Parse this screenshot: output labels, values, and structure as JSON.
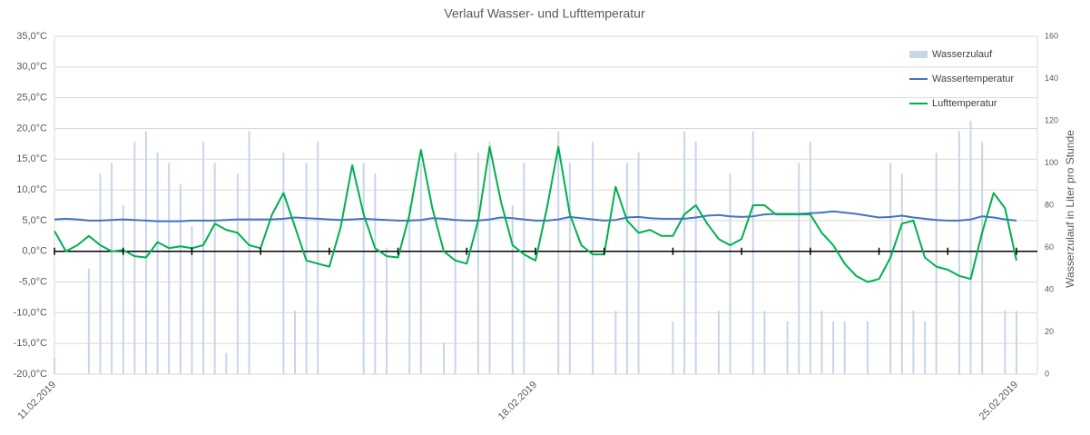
{
  "chart_data": {
    "type": "combo",
    "title": "Verlauf Wasser- und Lufttemperatur",
    "y2_label": "Wasserzulauf in Liter pro Stunde",
    "categories": [
      "11.02.2019",
      null,
      null,
      null,
      null,
      null,
      null,
      null,
      null,
      null,
      null,
      null,
      null,
      null,
      null,
      null,
      null,
      null,
      null,
      null,
      null,
      null,
      null,
      null,
      null,
      null,
      null,
      null,
      null,
      null,
      null,
      null,
      null,
      null,
      null,
      null,
      null,
      null,
      null,
      null,
      null,
      null,
      "18.02.2019",
      null,
      null,
      null,
      null,
      null,
      null,
      null,
      null,
      null,
      null,
      null,
      null,
      null,
      null,
      null,
      null,
      null,
      null,
      null,
      null,
      null,
      null,
      null,
      null,
      null,
      null,
      null,
      null,
      null,
      null,
      null,
      null,
      null,
      null,
      null,
      null,
      null,
      null,
      null,
      null,
      null,
      "25.02.2019"
    ],
    "ylim": [
      -20,
      35
    ],
    "yticks": [
      {
        "value": -20,
        "label": "-20,0°C"
      },
      {
        "value": -15,
        "label": "-15,0°C"
      },
      {
        "value": -10,
        "label": "-10,0°C"
      },
      {
        "value": -5,
        "label": "-5,0°C"
      },
      {
        "value": 0,
        "label": "0,0°C"
      },
      {
        "value": 5,
        "label": "5,0°C"
      },
      {
        "value": 10,
        "label": "10,0°C"
      },
      {
        "value": 15,
        "label": "15,0°C"
      },
      {
        "value": 20,
        "label": "20,0°C"
      },
      {
        "value": 25,
        "label": "25,0°C"
      },
      {
        "value": 30,
        "label": "30,0°C"
      },
      {
        "value": 35,
        "label": "35,0°C"
      }
    ],
    "y2lim": [
      0,
      160
    ],
    "y2ticks": [
      0,
      20,
      40,
      60,
      80,
      100,
      120,
      140,
      160
    ],
    "grid": true,
    "legend": "top-right",
    "series": [
      {
        "name": "Wasserzulauf",
        "type": "bar",
        "axis": "y2",
        "color": "#c9d5e8",
        "values": [
          8,
          0,
          0,
          50,
          95,
          100,
          80,
          110,
          115,
          105,
          100,
          90,
          70,
          110,
          100,
          10,
          95,
          115,
          0,
          0,
          105,
          30,
          100,
          110,
          0,
          0,
          0,
          100,
          95,
          60,
          0,
          80,
          100,
          0,
          15,
          105,
          0,
          105,
          110,
          0,
          80,
          100,
          0,
          0,
          115,
          100,
          0,
          110,
          0,
          30,
          100,
          105,
          0,
          0,
          25,
          115,
          110,
          0,
          30,
          95,
          0,
          115,
          30,
          0,
          25,
          100,
          110,
          30,
          25,
          25,
          0,
          25,
          0,
          100,
          95,
          30,
          25,
          105,
          0,
          115,
          120,
          110,
          0,
          30,
          30
        ]
      },
      {
        "name": "Wassertemperatur",
        "type": "line",
        "color": "#4472c4",
        "values": [
          5.2,
          5.3,
          5.2,
          5.0,
          5.0,
          5.1,
          5.2,
          5.1,
          5.0,
          4.9,
          4.9,
          4.9,
          5.0,
          5.0,
          5.0,
          5.1,
          5.2,
          5.2,
          5.2,
          5.2,
          5.3,
          5.5,
          5.4,
          5.3,
          5.2,
          5.1,
          5.2,
          5.3,
          5.2,
          5.1,
          5.0,
          5.0,
          5.1,
          5.4,
          5.3,
          5.1,
          5.0,
          5.0,
          5.2,
          5.5,
          5.4,
          5.2,
          5.0,
          5.0,
          5.2,
          5.6,
          5.4,
          5.2,
          5.0,
          5.1,
          5.5,
          5.6,
          5.4,
          5.3,
          5.3,
          5.3,
          5.5,
          5.8,
          5.9,
          5.7,
          5.6,
          5.7,
          6.0,
          6.1,
          6.1,
          6.1,
          6.2,
          6.3,
          6.5,
          6.3,
          6.1,
          5.8,
          5.5,
          5.6,
          5.8,
          5.5,
          5.3,
          5.1,
          5.0,
          5.0,
          5.2,
          5.7,
          5.5,
          5.2,
          5.0
        ]
      },
      {
        "name": "Lufttemperatur",
        "type": "line",
        "color": "#00b050",
        "values": [
          3.3,
          0,
          1,
          2.5,
          1,
          0,
          0.2,
          -0.8,
          -1,
          1.5,
          0.5,
          0.8,
          0.5,
          1,
          4.5,
          3.5,
          3,
          1,
          0.5,
          6,
          9.5,
          4,
          -1.5,
          -2,
          -2.5,
          4,
          14,
          6,
          0.5,
          -0.8,
          -1,
          6,
          16.5,
          7,
          0,
          -1.5,
          -2,
          5,
          17,
          8,
          1,
          -0.5,
          -1.5,
          7,
          17,
          6,
          1,
          -0.5,
          -0.5,
          10.5,
          5,
          3,
          3.5,
          2.5,
          2.5,
          6,
          7.5,
          4.5,
          2,
          1,
          2,
          7.5,
          7.5,
          6,
          6,
          6,
          6,
          3,
          1,
          -2,
          -4,
          -5,
          -4.5,
          -1,
          4.5,
          5,
          -1,
          -2.5,
          -3,
          -4,
          -4.5,
          3,
          9.5,
          7,
          -1.5
        ]
      }
    ]
  }
}
